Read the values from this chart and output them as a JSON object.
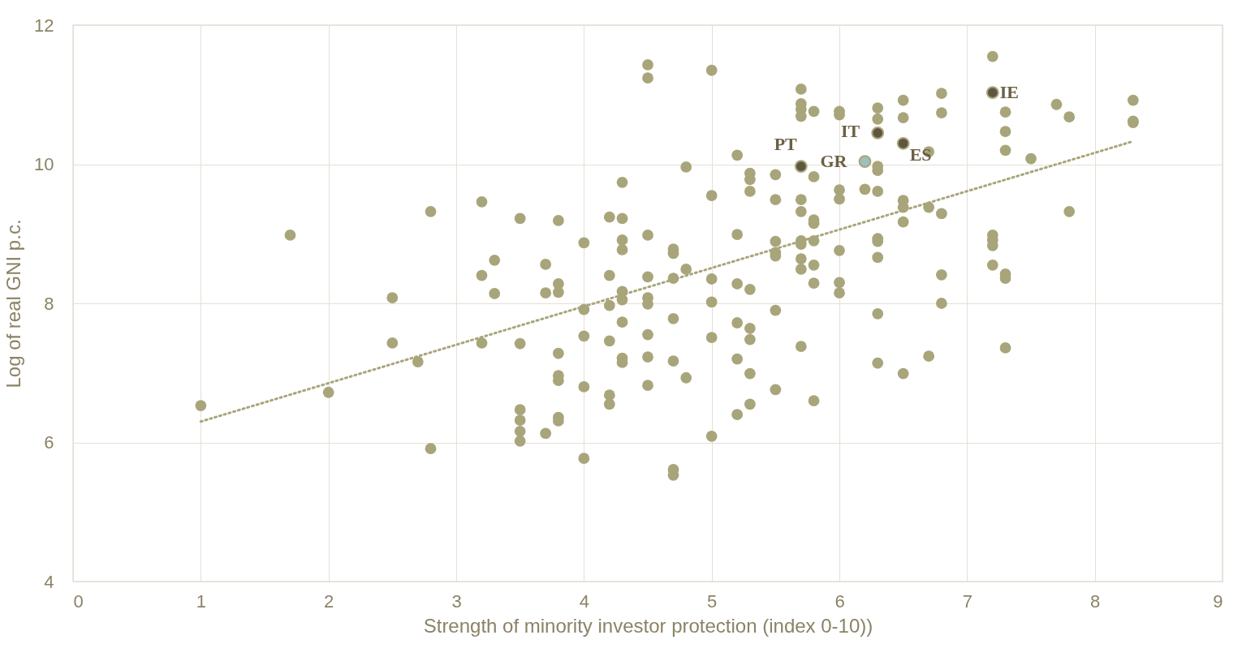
{
  "chart_data": {
    "type": "scatter",
    "xlabel": "Strength of minority investor protection (index 0-10))",
    "ylabel": "Log of real GNI p.c.",
    "xlim": [
      0,
      9
    ],
    "xticks": [
      0,
      1,
      2,
      3,
      4,
      5,
      6,
      7,
      8,
      9
    ],
    "ylim": [
      4,
      12
    ],
    "yticks": [
      4,
      6,
      8,
      10,
      12
    ],
    "grid": true,
    "marker": "circle",
    "series": [
      {
        "color": "#a9a57b",
        "x": [
          1.0,
          1.7,
          2.0,
          2.5,
          2.5,
          2.7,
          2.8,
          2.8,
          3.2,
          3.2,
          3.2,
          3.3,
          3.3,
          3.5,
          3.5,
          3.5,
          3.5,
          3.5,
          3.5,
          3.7,
          3.7,
          3.7,
          3.8,
          3.8,
          3.8,
          3.8,
          3.8,
          3.8,
          3.8,
          3.8,
          4.0,
          4.0,
          4.0,
          4.0,
          4.0,
          4.2,
          4.2,
          4.2,
          4.2,
          4.2,
          4.2,
          4.3,
          4.3,
          4.3,
          4.3,
          4.3,
          4.3,
          4.3,
          4.3,
          4.3,
          4.5,
          4.5,
          4.5,
          4.5,
          4.5,
          4.5,
          4.5,
          4.5,
          4.5,
          4.7,
          4.7,
          4.7,
          4.7,
          4.7,
          4.7,
          4.7,
          4.8,
          4.8,
          4.8,
          5.0,
          5.0,
          5.0,
          5.0,
          5.0,
          5.0,
          5.2,
          5.2,
          5.2,
          5.2,
          5.2,
          5.2,
          5.3,
          5.3,
          5.3,
          5.3,
          5.3,
          5.3,
          5.3,
          5.3,
          5.5,
          5.5,
          5.5,
          5.5,
          5.5,
          5.5,
          5.5,
          5.7,
          5.7,
          5.7,
          5.7,
          5.7,
          5.7,
          5.7,
          5.7,
          5.7,
          5.7,
          5.7,
          5.8,
          5.8,
          5.8,
          5.8,
          5.8,
          5.8,
          5.8,
          5.8,
          6.0,
          6.0,
          6.0,
          6.0,
          6.0,
          6.0,
          6.0,
          6.2,
          6.3,
          6.3,
          6.3,
          6.3,
          6.3,
          6.3,
          6.3,
          6.3,
          6.3,
          6.3,
          6.5,
          6.5,
          6.5,
          6.5,
          6.5,
          6.5,
          6.7,
          6.7,
          6.7,
          6.8,
          6.8,
          6.8,
          6.8,
          6.8,
          7.2,
          7.2,
          7.2,
          7.2,
          7.2,
          7.3,
          7.3,
          7.3,
          7.3,
          7.3,
          7.3,
          7.5,
          7.7,
          7.8,
          7.8,
          8.3,
          8.3,
          8.3
        ],
        "values": [
          6.53,
          8.98,
          6.72,
          8.08,
          7.43,
          7.16,
          9.32,
          5.91,
          9.46,
          8.4,
          7.43,
          8.62,
          8.14,
          9.22,
          7.42,
          6.47,
          6.32,
          6.16,
          6.02,
          8.56,
          8.15,
          6.13,
          9.19,
          8.28,
          8.16,
          7.28,
          6.96,
          6.89,
          6.36,
          6.31,
          8.87,
          7.91,
          7.53,
          6.8,
          5.77,
          9.24,
          8.4,
          7.97,
          7.46,
          6.68,
          6.55,
          9.74,
          9.22,
          8.91,
          8.77,
          8.17,
          8.05,
          7.73,
          7.21,
          7.15,
          11.43,
          11.24,
          8.98,
          8.38,
          8.08,
          7.99,
          7.55,
          7.23,
          6.82,
          8.78,
          8.72,
          8.36,
          7.78,
          7.17,
          5.61,
          5.53,
          9.96,
          8.49,
          6.93,
          11.35,
          9.55,
          8.35,
          8.02,
          7.51,
          6.09,
          10.13,
          8.99,
          8.28,
          7.72,
          7.2,
          6.4,
          9.87,
          9.78,
          9.61,
          8.2,
          7.64,
          7.48,
          6.99,
          6.55,
          9.85,
          9.49,
          8.89,
          8.73,
          8.68,
          7.9,
          6.76,
          11.08,
          10.87,
          10.79,
          10.69,
          9.49,
          9.32,
          8.9,
          8.85,
          8.64,
          8.49,
          7.38,
          10.76,
          9.82,
          9.2,
          9.15,
          8.9,
          8.55,
          8.29,
          6.6,
          10.76,
          10.71,
          9.63,
          9.5,
          8.76,
          8.3,
          8.15,
          9.64,
          10.81,
          10.65,
          9.97,
          9.91,
          9.61,
          8.93,
          8.89,
          8.66,
          7.85,
          7.14,
          10.92,
          10.67,
          9.48,
          9.38,
          9.17,
          6.99,
          10.18,
          9.38,
          7.24,
          11.02,
          10.74,
          9.29,
          8.41,
          8.0,
          11.55,
          8.98,
          8.91,
          8.83,
          8.55,
          10.75,
          10.47,
          10.2,
          8.42,
          8.36,
          7.36,
          10.08,
          10.86,
          10.68,
          9.32,
          10.92,
          10.62,
          10.6
        ]
      },
      {
        "name": "PT",
        "color": "#5e5640",
        "x": [
          5.7
        ],
        "values": [
          9.97
        ]
      },
      {
        "name": "GR",
        "color": "#9dbfbf",
        "x": [
          6.2
        ],
        "values": [
          10.04
        ]
      },
      {
        "name": "IT",
        "color": "#5e5640",
        "x": [
          6.3
        ],
        "values": [
          10.45
        ]
      },
      {
        "name": "ES",
        "color": "#5e5640",
        "x": [
          6.5
        ],
        "values": [
          10.3
        ]
      },
      {
        "name": "IE",
        "color": "#5e5640",
        "x": [
          7.2
        ],
        "values": [
          11.03
        ]
      },
      {
        "type": "line",
        "line_style": "dotted",
        "marker": "none",
        "color": "#a9a57b",
        "x": [
          1.0,
          8.3
        ],
        "values": [
          6.3,
          10.33
        ]
      }
    ]
  }
}
